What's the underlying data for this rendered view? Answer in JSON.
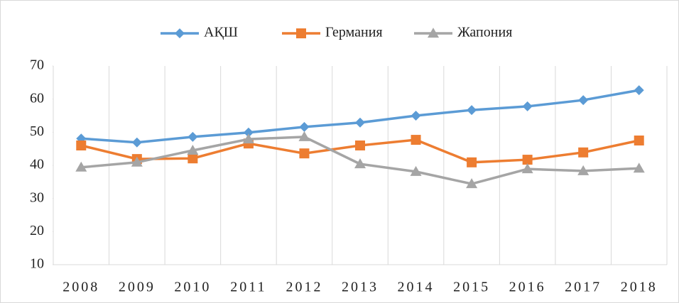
{
  "chart_data": {
    "type": "line",
    "categories": [
      "2008",
      "2009",
      "2010",
      "2011",
      "2012",
      "2013",
      "2014",
      "2015",
      "2016",
      "2017",
      "2018"
    ],
    "series": [
      {
        "name": "АҚШ",
        "color": "#5b9bd5",
        "marker": "diamond",
        "values": [
          48.1,
          46.9,
          48.6,
          49.9,
          51.6,
          52.9,
          55.0,
          56.7,
          57.8,
          59.7,
          62.7
        ]
      },
      {
        "name": "Германия",
        "color": "#ed7d31",
        "marker": "square",
        "values": [
          46.0,
          41.9,
          42.1,
          46.6,
          43.6,
          46.0,
          47.7,
          40.9,
          41.7,
          43.9,
          47.5
        ]
      },
      {
        "name": "Жапония",
        "color": "#a5a5a5",
        "marker": "triangle",
        "values": [
          39.4,
          40.9,
          44.5,
          47.9,
          48.6,
          40.4,
          38.1,
          34.4,
          38.9,
          38.3,
          39.1
        ]
      }
    ],
    "ylim": [
      10,
      70
    ],
    "yticks": [
      10,
      20,
      30,
      40,
      50,
      60,
      70
    ],
    "xgrid": true,
    "legend": "top"
  }
}
